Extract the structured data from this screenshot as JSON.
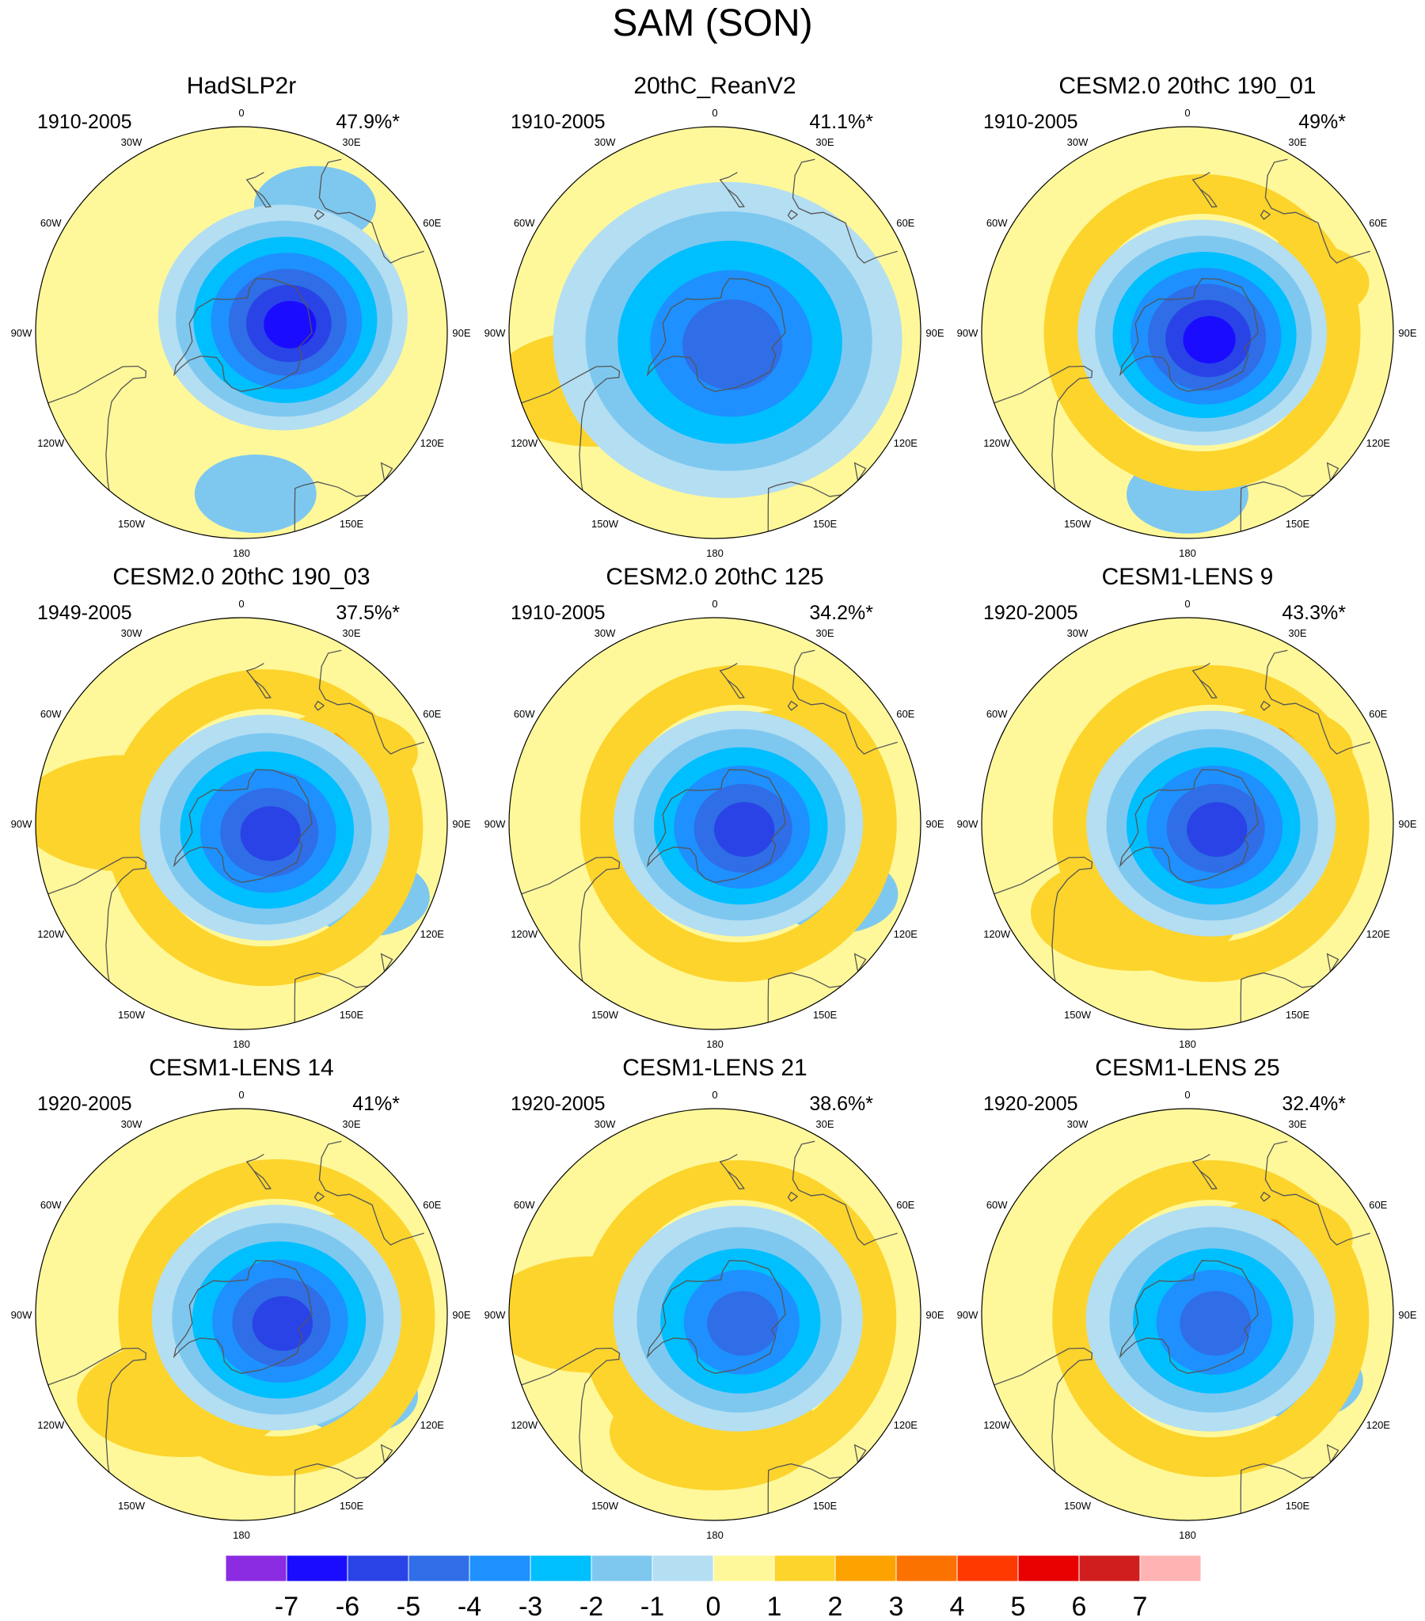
{
  "chart_data": {
    "type": "contour-map-grid",
    "title": "SAM (SON)",
    "lon_labels": [
      "0",
      "30E",
      "60E",
      "90E",
      "120E",
      "150E",
      "180",
      "150W",
      "120W",
      "90W",
      "60W",
      "30W"
    ],
    "panels": [
      {
        "name": "HadSLP2r",
        "period": "1910-2005",
        "variance": "47.9%*",
        "center": [
          -75,
          110
        ],
        "ring": 0,
        "min": -6,
        "blobs": [
          {
            "lon": 130,
            "lat": -47,
            "v": 1
          },
          {
            "lon": 5,
            "lat": -35,
            "v": -1
          },
          {
            "lon": 150,
            "lat": -40,
            "v": -1
          }
        ]
      },
      {
        "name": "20thC_ReanV2",
        "period": "1910-2005",
        "variance": "41.1%*",
        "center": [
          -85,
          60
        ],
        "ring": -1,
        "min": -4,
        "blobs": [
          {
            "lon": 80,
            "lat": -48,
            "v": 1
          },
          {
            "lon": 150,
            "lat": -50,
            "v": 1
          },
          {
            "lon": -65,
            "lat": -45,
            "v": 2
          }
        ]
      },
      {
        "name": "CESM2.0 20thC 190_01",
        "period": "1910-2005",
        "variance": "49%*",
        "center": [
          -85,
          90
        ],
        "ring": 2,
        "min": -6,
        "blobs": [
          {
            "lon": 0,
            "lat": -35,
            "v": -1
          },
          {
            "lon": 115,
            "lat": -50,
            "v": 3
          }
        ]
      },
      {
        "name": "CESM2.0 20thC 190_03",
        "period": "1949-2005",
        "variance": "37.5%*",
        "center": [
          -82,
          80
        ],
        "ring": 2,
        "min": -5,
        "blobs": [
          {
            "lon": 95,
            "lat": -55,
            "v": 3
          },
          {
            "lon": 125,
            "lat": -48,
            "v": 3
          },
          {
            "lon": -95,
            "lat": -50,
            "v": 2
          },
          {
            "lon": 60,
            "lat": -40,
            "v": -1
          }
        ]
      },
      {
        "name": "CESM2.0 20thC 125",
        "period": "1910-2005",
        "variance": "34.2%*",
        "center": [
          -82,
          90
        ],
        "ring": 2,
        "min": -5,
        "blobs": [
          {
            "lon": 135,
            "lat": -55,
            "v": 3
          },
          {
            "lon": 60,
            "lat": -42,
            "v": -1
          }
        ]
      },
      {
        "name": "CESM1-LENS 9",
        "period": "1920-2005",
        "variance": "43.3%*",
        "center": [
          -82,
          90
        ],
        "ring": 2,
        "min": -5,
        "blobs": [
          {
            "lon": 130,
            "lat": -50,
            "v": 3
          },
          {
            "lon": 95,
            "lat": -58,
            "v": 3
          },
          {
            "lon": -30,
            "lat": -55,
            "v": 2
          }
        ]
      },
      {
        "name": "CESM1-LENS 14",
        "period": "1920-2005",
        "variance": "41%*",
        "center": [
          -78,
          85
        ],
        "ring": 2,
        "min": -5,
        "blobs": [
          {
            "lon": 120,
            "lat": -50,
            "v": 3
          },
          {
            "lon": -35,
            "lat": -55,
            "v": 2
          },
          {
            "lon": 55,
            "lat": -42,
            "v": -1
          }
        ]
      },
      {
        "name": "CESM1-LENS 21",
        "period": "1920-2005",
        "variance": "38.6%*",
        "center": [
          -82,
          80
        ],
        "ring": 2,
        "min": -4,
        "blobs": [
          {
            "lon": 0,
            "lat": -50,
            "v": 2
          },
          {
            "lon": -90,
            "lat": -48,
            "v": 2
          }
        ]
      },
      {
        "name": "CESM1-LENS 25",
        "period": "1920-2005",
        "variance": "32.4%*",
        "center": [
          -82,
          80
        ],
        "ring": 2,
        "min": -4,
        "blobs": [
          {
            "lon": 130,
            "lat": -50,
            "v": 3
          },
          {
            "lon": 60,
            "lat": -45,
            "v": -1
          }
        ]
      }
    ],
    "colorbar": {
      "labels": [
        "-7",
        "-6",
        "-5",
        "-4",
        "-3",
        "-2",
        "-1",
        "0",
        "1",
        "2",
        "3",
        "4",
        "5",
        "6",
        "7"
      ],
      "colors": [
        "#8b2be2",
        "#1a0dff",
        "#2a43e6",
        "#2f6ee6",
        "#1e90ff",
        "#00bfff",
        "#7ec8f0",
        "#b4def2",
        "#fff89a",
        "#fcd42c",
        "#fca300",
        "#fc7200",
        "#ff3a00",
        "#e80000",
        "#d01e1e",
        "#ffb3b3"
      ]
    }
  }
}
